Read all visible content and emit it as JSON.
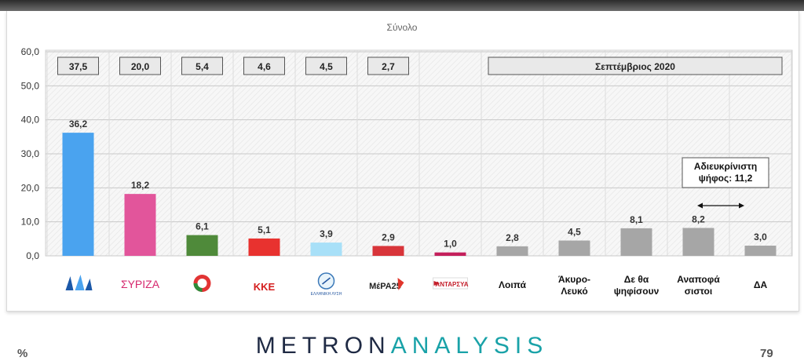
{
  "chart_data": {
    "type": "bar",
    "title": "Σύνολο",
    "ylim": [
      0,
      60
    ],
    "yticks": [
      "0,0",
      "10,0",
      "20,0",
      "30,0",
      "40,0",
      "50,0",
      "60,0"
    ],
    "categories": [
      "ΝΔ",
      "ΣΥΡΙΖΑ",
      "ΚΙΝΑΛ",
      "ΚΚΕ",
      "Ελληνική Λύση",
      "ΜέΡΑ25",
      "ΑΝΤΑΡΣΥΑ",
      "Λοιπά",
      "Άκυρο-Λευκό",
      "Δε θα ψηφίσουν",
      "Αναποφάσιστοι",
      "ΔΑ"
    ],
    "values": [
      36.2,
      18.2,
      6.1,
      5.1,
      3.9,
      2.9,
      1.0,
      2.8,
      4.5,
      8.1,
      8.2,
      3.0
    ],
    "value_labels": [
      "36,2",
      "18,2",
      "6,1",
      "5,1",
      "3,9",
      "2,9",
      "1,0",
      "2,8",
      "4,5",
      "8,1",
      "8,2",
      "3,0"
    ],
    "colors": [
      "#4aa3ef",
      "#e2559b",
      "#4f8a3a",
      "#e8322f",
      "#a8e0f8",
      "#d8353a",
      "#c41f5b",
      "#a6a6a6",
      "#a6a6a6",
      "#a6a6a6",
      "#a6a6a6",
      "#a6a6a6"
    ],
    "x_labels": [
      "",
      "",
      "",
      "",
      "",
      "",
      "",
      "Λοιπά",
      "Άκυρο-\nΛευκό",
      "Δε θα\nψηφίσουν",
      "Αναποφά\nσιστοι",
      "ΔΑ"
    ],
    "logo_marks": [
      "ΝΔ",
      "ΣΥΡΙΖΑ",
      "ΚΙΝΑΛ",
      "ΚΚΕ",
      "ΕΛΛΗΝΙΚΗ ΛΥΣΗ",
      "ΜέΡΑ25",
      "ΑΝΤΑΡΣΥΑ"
    ],
    "previous_values": [
      "37,5",
      "20,0",
      "5,4",
      "4,6",
      "4,5",
      "2,7"
    ],
    "previous_period_label": "Σεπτέμβριος 2020",
    "annotation": "Αδιευκρίνιστη\nψήφος: 11,2",
    "grid": true
  },
  "footer": {
    "brand_part1": "METRON",
    "brand_part2": "ANALYSIS",
    "unit": "%",
    "page_number": "79"
  }
}
